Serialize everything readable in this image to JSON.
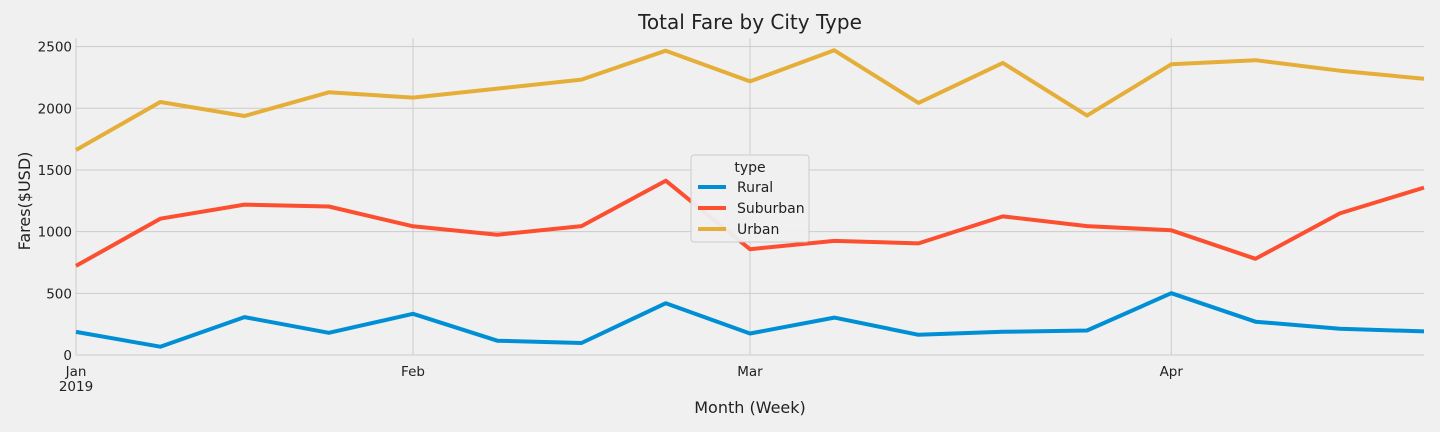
{
  "chart_data": {
    "type": "line",
    "title": "Total Fare by City Type",
    "xlabel": "Month (Week)",
    "ylabel": "Fares($USD)",
    "x": [
      "2019-01-06",
      "2019-01-13",
      "2019-01-20",
      "2019-01-27",
      "2019-02-03",
      "2019-02-10",
      "2019-02-17",
      "2019-02-24",
      "2019-03-03",
      "2019-03-10",
      "2019-03-17",
      "2019-03-24",
      "2019-03-31",
      "2019-04-07",
      "2019-04-14",
      "2019-04-21",
      "2019-04-28"
    ],
    "x_ticks": [
      {
        "label": "Jan",
        "sublabel": "2019",
        "date": "2019-01-06"
      },
      {
        "label": "Feb",
        "sublabel": "",
        "date": "2019-02-03"
      },
      {
        "label": "Mar",
        "sublabel": "",
        "date": "2019-03-03"
      },
      {
        "label": "Apr",
        "sublabel": "",
        "date": "2019-04-07"
      }
    ],
    "ylim": [
      0,
      2570
    ],
    "y_ticks": [
      0,
      500,
      1000,
      1500,
      2000,
      2500
    ],
    "grid": true,
    "legend": {
      "title": "type",
      "placement": "center"
    },
    "series": [
      {
        "name": "Rural",
        "color": "#008fd5",
        "values": [
          187,
          67,
          307,
          180,
          334,
          116,
          97,
          420,
          174,
          303,
          164,
          188,
          199,
          501,
          270,
          213,
          191
        ]
      },
      {
        "name": "Suburban",
        "color": "#fc4f30",
        "values": [
          722,
          1105,
          1219,
          1204,
          1043,
          975,
          1045,
          1413,
          858,
          925,
          905,
          1124,
          1045,
          1011,
          780,
          1148,
          1357
        ]
      },
      {
        "name": "Urban",
        "color": "#e5ae38",
        "values": [
          1662,
          2051,
          1938,
          2130,
          2087,
          2160,
          2233,
          2467,
          2218,
          2470,
          2044,
          2368,
          1941,
          2357,
          2390,
          2305,
          2239
        ]
      }
    ]
  }
}
